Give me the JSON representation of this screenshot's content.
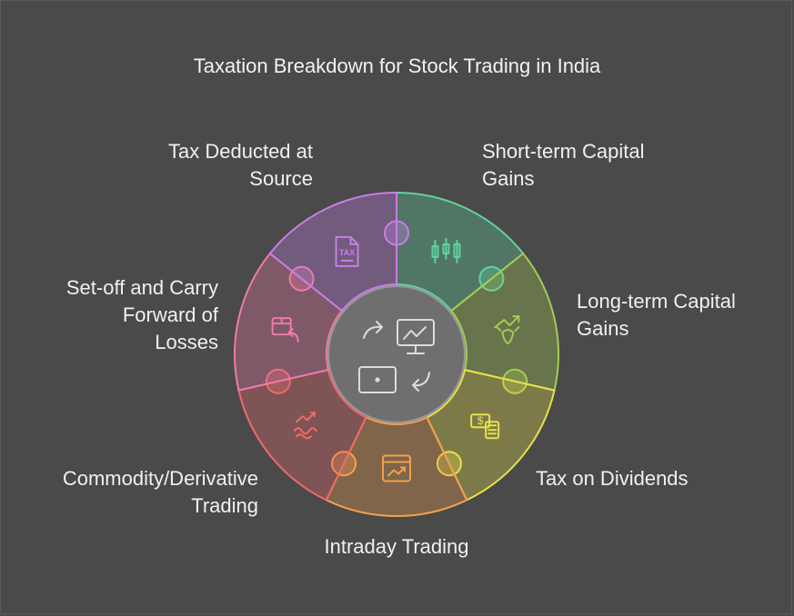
{
  "title": "Taxation Breakdown for Stock Trading in India",
  "segments": [
    {
      "label": "Short-term Capital\nGains",
      "color": "#5fd3a0",
      "icon": "candlestick-chart-icon"
    },
    {
      "label": "Long-term Capital\nGains",
      "color": "#a4cc52",
      "icon": "bull-growth-icon"
    },
    {
      "label": "Tax on Dividends",
      "color": "#e8e04a",
      "icon": "money-calculator-icon"
    },
    {
      "label": "Intraday Trading",
      "color": "#f2a04e",
      "icon": "trend-window-icon"
    },
    {
      "label": "Commodity/Derivative\nTrading",
      "color": "#f06a6a",
      "icon": "commodity-trend-icon"
    },
    {
      "label": "Set-off and Carry\nForward of\nLosses",
      "color": "#ef7aa8",
      "icon": "box-return-icon"
    },
    {
      "label": "Tax Deducted at\nSource",
      "color": "#c77ee6",
      "icon": "tax-document-icon"
    }
  ],
  "hub_icon": "trading-cycle-icon",
  "icon_text": {
    "tax_doc": "TAX",
    "dollar": "$"
  }
}
